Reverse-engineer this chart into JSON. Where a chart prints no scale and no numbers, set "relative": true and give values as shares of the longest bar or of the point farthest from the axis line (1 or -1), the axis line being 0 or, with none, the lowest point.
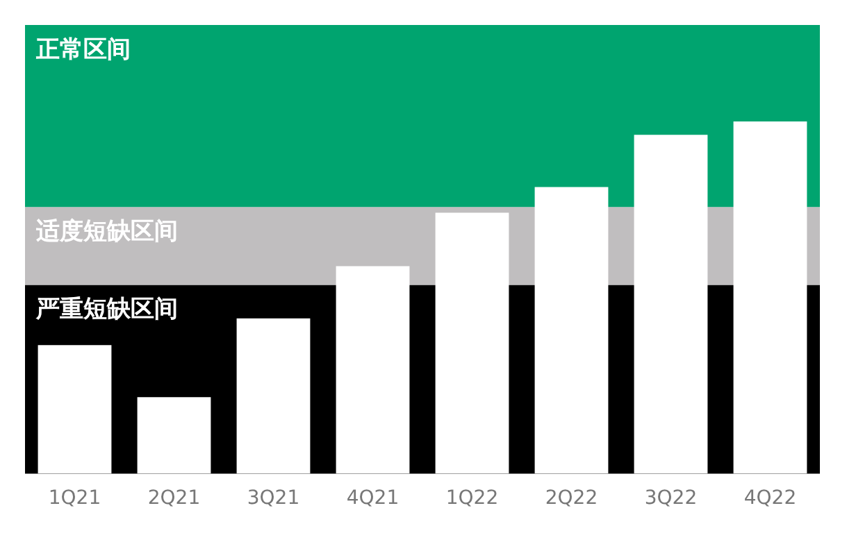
{
  "chart_data": {
    "type": "bar",
    "relative": true,
    "categories": [
      "1Q21",
      "2Q21",
      "3Q21",
      "4Q21",
      "1Q22",
      "2Q22",
      "3Q22",
      "4Q22"
    ],
    "values": [
      0.365,
      0.217,
      0.441,
      0.589,
      0.741,
      0.814,
      0.962,
      1
    ],
    "color": "#ffffff",
    "bands": [
      {
        "axis": "y",
        "from": 0,
        "to": 0.536,
        "label": "严重短缺区间",
        "color": "#000000"
      },
      {
        "axis": "y",
        "from": 0.536,
        "to": 0.757,
        "label": "适度短缺区间",
        "color": "#c0bebf"
      },
      {
        "axis": "y",
        "from": 0.757,
        "to": 1.274,
        "label": "正常区间",
        "color": "#00a46f"
      }
    ],
    "grid": false,
    "legend": false
  }
}
